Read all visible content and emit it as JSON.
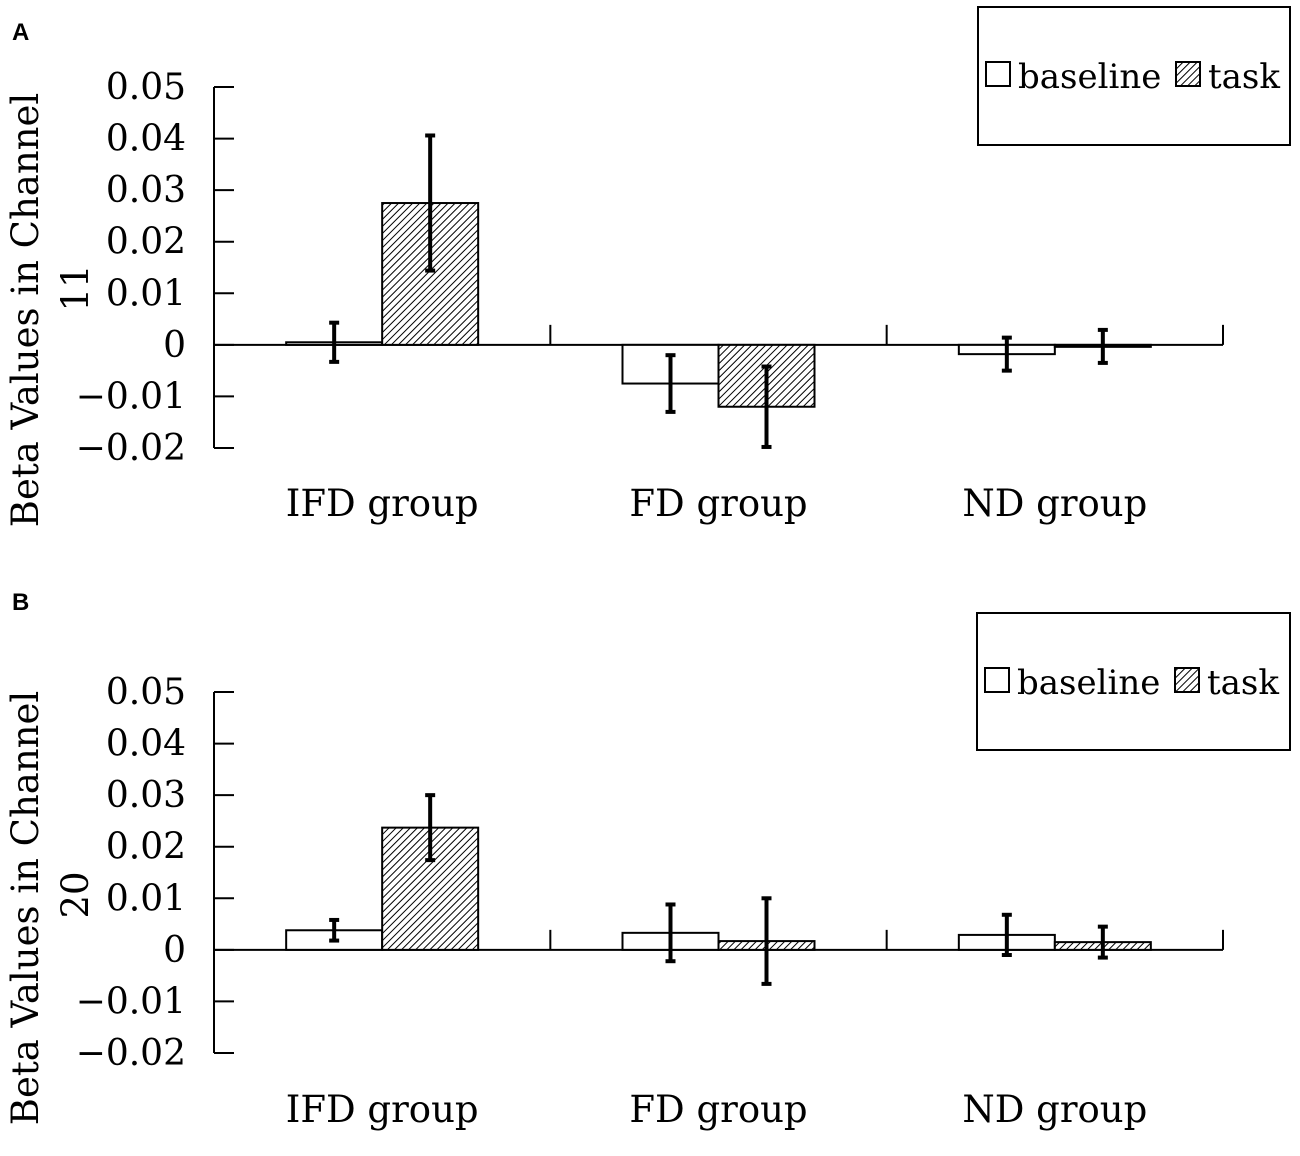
{
  "chart_data": [
    {
      "type": "bar",
      "panel_label": "A",
      "title": "",
      "xlabel": "",
      "ylabel": "Beta Values in Channel 11",
      "ylabel_lines": [
        "Beta Values in Channel",
        "11"
      ],
      "ylim": [
        -0.02,
        0.05
      ],
      "yticks": [
        0.05,
        0.04,
        0.03,
        0.02,
        0.01,
        0,
        -0.01,
        -0.02
      ],
      "ytick_labels": [
        "0.05",
        "0.04",
        "0.03",
        "0.02",
        "0.01",
        "0",
        "−0.01",
        "−0.02"
      ],
      "categories": [
        "IFD group",
        "FD group",
        "ND group"
      ],
      "legend_position": "top-right",
      "series": [
        {
          "name": "baseline",
          "pattern": "blank",
          "values": [
            0.0005,
            -0.0075,
            -0.0018
          ],
          "errors": [
            0.0038,
            0.0055,
            0.0032
          ]
        },
        {
          "name": "task",
          "pattern": "hatched",
          "values": [
            0.0275,
            -0.012,
            -0.0003
          ],
          "errors": [
            0.0131,
            0.0078,
            0.0032
          ]
        }
      ]
    },
    {
      "type": "bar",
      "panel_label": "B",
      "title": "",
      "xlabel": "",
      "ylabel": "Beta Values in Channel 20",
      "ylabel_lines": [
        "Beta Values in Channel",
        "20"
      ],
      "ylim": [
        -0.02,
        0.05
      ],
      "yticks": [
        0.05,
        0.04,
        0.03,
        0.02,
        0.01,
        0,
        -0.01,
        -0.02
      ],
      "ytick_labels": [
        "0.05",
        "0.04",
        "0.03",
        "0.02",
        "0.01",
        "0",
        "−0.01",
        "−0.02"
      ],
      "categories": [
        "IFD group",
        "FD group",
        "ND group"
      ],
      "legend_position": "top-right",
      "series": [
        {
          "name": "baseline",
          "pattern": "blank",
          "values": [
            0.0038,
            0.0033,
            0.0029
          ],
          "errors": [
            0.002,
            0.0055,
            0.0039
          ]
        },
        {
          "name": "task",
          "pattern": "hatched",
          "values": [
            0.0237,
            0.0017,
            0.0015
          ],
          "errors": [
            0.0063,
            0.0083,
            0.003
          ]
        }
      ]
    }
  ]
}
